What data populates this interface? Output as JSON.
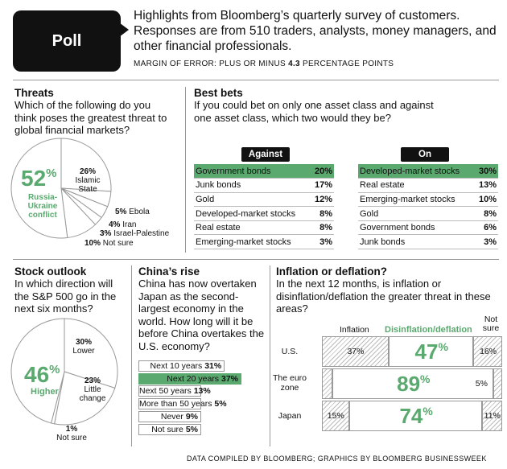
{
  "header": {
    "badge": "Poll",
    "intro": "Highlights from Bloomberg’s quarterly survey of customers. Responses are from 510 traders, analysts, money managers, and other financial professionals.",
    "moe_prefix": "MARGIN OF ERROR: PLUS OR MINUS ",
    "moe_value": "4.3",
    "moe_suffix": " PERCENTAGE POINTS"
  },
  "footer": "DATA COMPILED BY BLOOMBERG; GRAPHICS BY BLOOMBERG BUSINESSWEEK",
  "colors": {
    "accent": "#5aa96e",
    "dark": "#111111",
    "rule": "#999999"
  },
  "chart_data": [
    {
      "type": "pie",
      "title": "Threats",
      "subtitle": "Which of the following do you think poses the greatest threat to global financial markets?",
      "categories": [
        "Russia-Ukraine conflict",
        "Islamic State",
        "Ebola",
        "Iran",
        "Israel-Palestine",
        "Not sure"
      ],
      "values": [
        52,
        26,
        5,
        4,
        3,
        10
      ],
      "labels": [
        "52%",
        "26%",
        "5%",
        "4%",
        "3%",
        "10%"
      ],
      "highlight": "Russia-Ukraine conflict"
    },
    {
      "type": "table",
      "title": "Best bets",
      "subtitle": "If you could bet on only one asset class and against one asset class, which two would they be?",
      "against": {
        "label": "Against",
        "rows": [
          {
            "name": "Government bonds",
            "value": "20%"
          },
          {
            "name": "Junk bonds",
            "value": "17%"
          },
          {
            "name": "Gold",
            "value": "12%"
          },
          {
            "name": "Developed-market stocks",
            "value": "8%"
          },
          {
            "name": "Real estate",
            "value": "8%"
          },
          {
            "name": "Emerging-market stocks",
            "value": "3%"
          }
        ]
      },
      "on": {
        "label": "On",
        "rows": [
          {
            "name": "Developed-market stocks",
            "value": "30%"
          },
          {
            "name": "Real estate",
            "value": "13%"
          },
          {
            "name": "Emerging-market stocks",
            "value": "10%"
          },
          {
            "name": "Gold",
            "value": "8%"
          },
          {
            "name": "Government bonds",
            "value": "6%"
          },
          {
            "name": "Junk bonds",
            "value": "3%"
          }
        ]
      }
    },
    {
      "type": "pie",
      "title": "Stock outlook",
      "subtitle": "In which direction will the S&P 500 go in the next six months?",
      "categories": [
        "Higher",
        "Lower",
        "Little change",
        "Not sure"
      ],
      "values": [
        46,
        30,
        23,
        1
      ],
      "labels": [
        "46%",
        "30%",
        "23%",
        "1%"
      ],
      "highlight": "Higher"
    },
    {
      "type": "bar",
      "title": "China’s rise",
      "subtitle": "China has now overtaken Japan as the second-largest economy in the world. How long will it be before China overtakes the U.S. economy?",
      "categories": [
        "Next 10 years",
        "Next 20 years",
        "Next 50 years",
        "More than 50 years",
        "Never",
        "Not sure"
      ],
      "values": [
        31,
        37,
        13,
        5,
        9,
        5
      ],
      "labels": [
        "31%",
        "37%",
        "13%",
        "5%",
        "9%",
        "5%"
      ],
      "highlight": "Next 20 years"
    },
    {
      "type": "bar",
      "title": "Inflation or deflation?",
      "subtitle": "In the next 12 months, is inflation or disinflation/deflation the greater threat in these areas?",
      "categories": [
        "U.S.",
        "The euro zone",
        "Japan"
      ],
      "series": [
        {
          "name": "Inflation",
          "values": [
            37,
            6,
            15
          ]
        },
        {
          "name": "Disinflation/deflation",
          "values": [
            47,
            89,
            74
          ]
        },
        {
          "name": "Not sure",
          "values": [
            16,
            5,
            11
          ]
        }
      ],
      "labels": {
        "inflation": [
          "37%",
          "6%",
          "15%"
        ],
        "disinflation": [
          "47",
          "89",
          "74"
        ],
        "not_sure": [
          "16%",
          "5%",
          "11%"
        ]
      },
      "pct": "%"
    }
  ]
}
